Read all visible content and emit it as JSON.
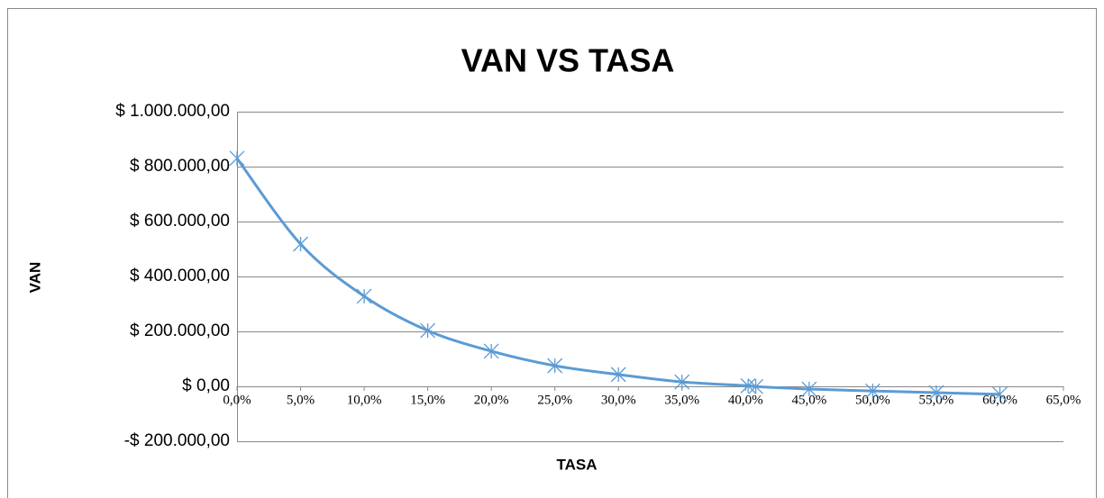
{
  "chart_data": {
    "type": "scatter",
    "title": "VAN VS TASA",
    "x_label": "TASA",
    "y_label": "VAN",
    "color": "#5b9bd5",
    "grid": true,
    "smooth": true,
    "x": [
      0,
      5,
      10,
      15,
      20,
      25,
      30,
      35,
      40.2,
      40.8,
      45,
      50,
      55,
      60
    ],
    "values": [
      830000,
      518000,
      328000,
      203000,
      128000,
      75000,
      43000,
      16000,
      2000,
      -1000,
      -10000,
      -17000,
      -23000,
      -29000
    ],
    "xlim": [
      0,
      65
    ],
    "xticks": [
      {
        "value": 0,
        "label": "0,0%"
      },
      {
        "value": 5,
        "label": "5,0%"
      },
      {
        "value": 10,
        "label": "10,0%"
      },
      {
        "value": 15,
        "label": "15,0%"
      },
      {
        "value": 20,
        "label": "20,0%"
      },
      {
        "value": 25,
        "label": "25,0%"
      },
      {
        "value": 30,
        "label": "30,0%"
      },
      {
        "value": 35,
        "label": "35,0%"
      },
      {
        "value": 40,
        "label": "40,0%"
      },
      {
        "value": 45,
        "label": "45,0%"
      },
      {
        "value": 50,
        "label": "50,0%"
      },
      {
        "value": 55,
        "label": "55,0%"
      },
      {
        "value": 60,
        "label": "60,0%"
      },
      {
        "value": 65,
        "label": "65,0%"
      }
    ],
    "ylim": [
      -200000,
      1000000
    ],
    "yticks": [
      {
        "value": -200000,
        "label": "-$ 200.000,00"
      },
      {
        "value": 0,
        "label": "$ 0,00"
      },
      {
        "value": 200000,
        "label": "$ 200.000,00"
      },
      {
        "value": 400000,
        "label": "$ 400.000,00"
      },
      {
        "value": 600000,
        "label": "$ 600.000,00"
      },
      {
        "value": 800000,
        "label": "$ 800.000,00"
      },
      {
        "value": 1000000,
        "label": "$ 1.000.000,00"
      }
    ]
  }
}
